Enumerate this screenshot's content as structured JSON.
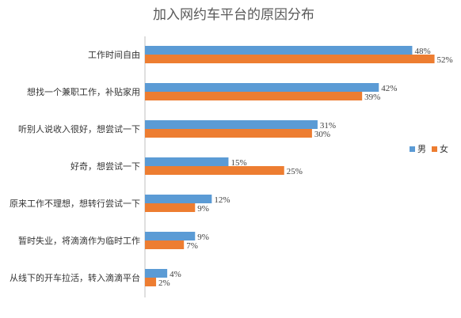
{
  "chart_data": {
    "type": "bar",
    "orientation": "horizontal",
    "title": "加入网约车平台的原因分布",
    "categories": [
      "工作时间自由",
      "想找一个兼职工作，补贴家用",
      "听别人说收入很好，想尝试一下",
      "好奇，想尝试一下",
      "原来工作不理想，想转行尝试一下",
      "暂时失业，将滴滴作为临时工作",
      "从线下的开车拉活，转入滴滴平台"
    ],
    "series": [
      {
        "name": "男",
        "color": "#5b9bd5",
        "values": [
          48,
          42,
          31,
          15,
          12,
          9,
          4
        ]
      },
      {
        "name": "女",
        "color": "#ed7d31",
        "values": [
          52,
          39,
          30,
          25,
          9,
          7,
          2
        ]
      }
    ],
    "value_suffix": "%",
    "xlim": [
      0,
      60
    ],
    "grid": false,
    "legend_position": "right"
  }
}
